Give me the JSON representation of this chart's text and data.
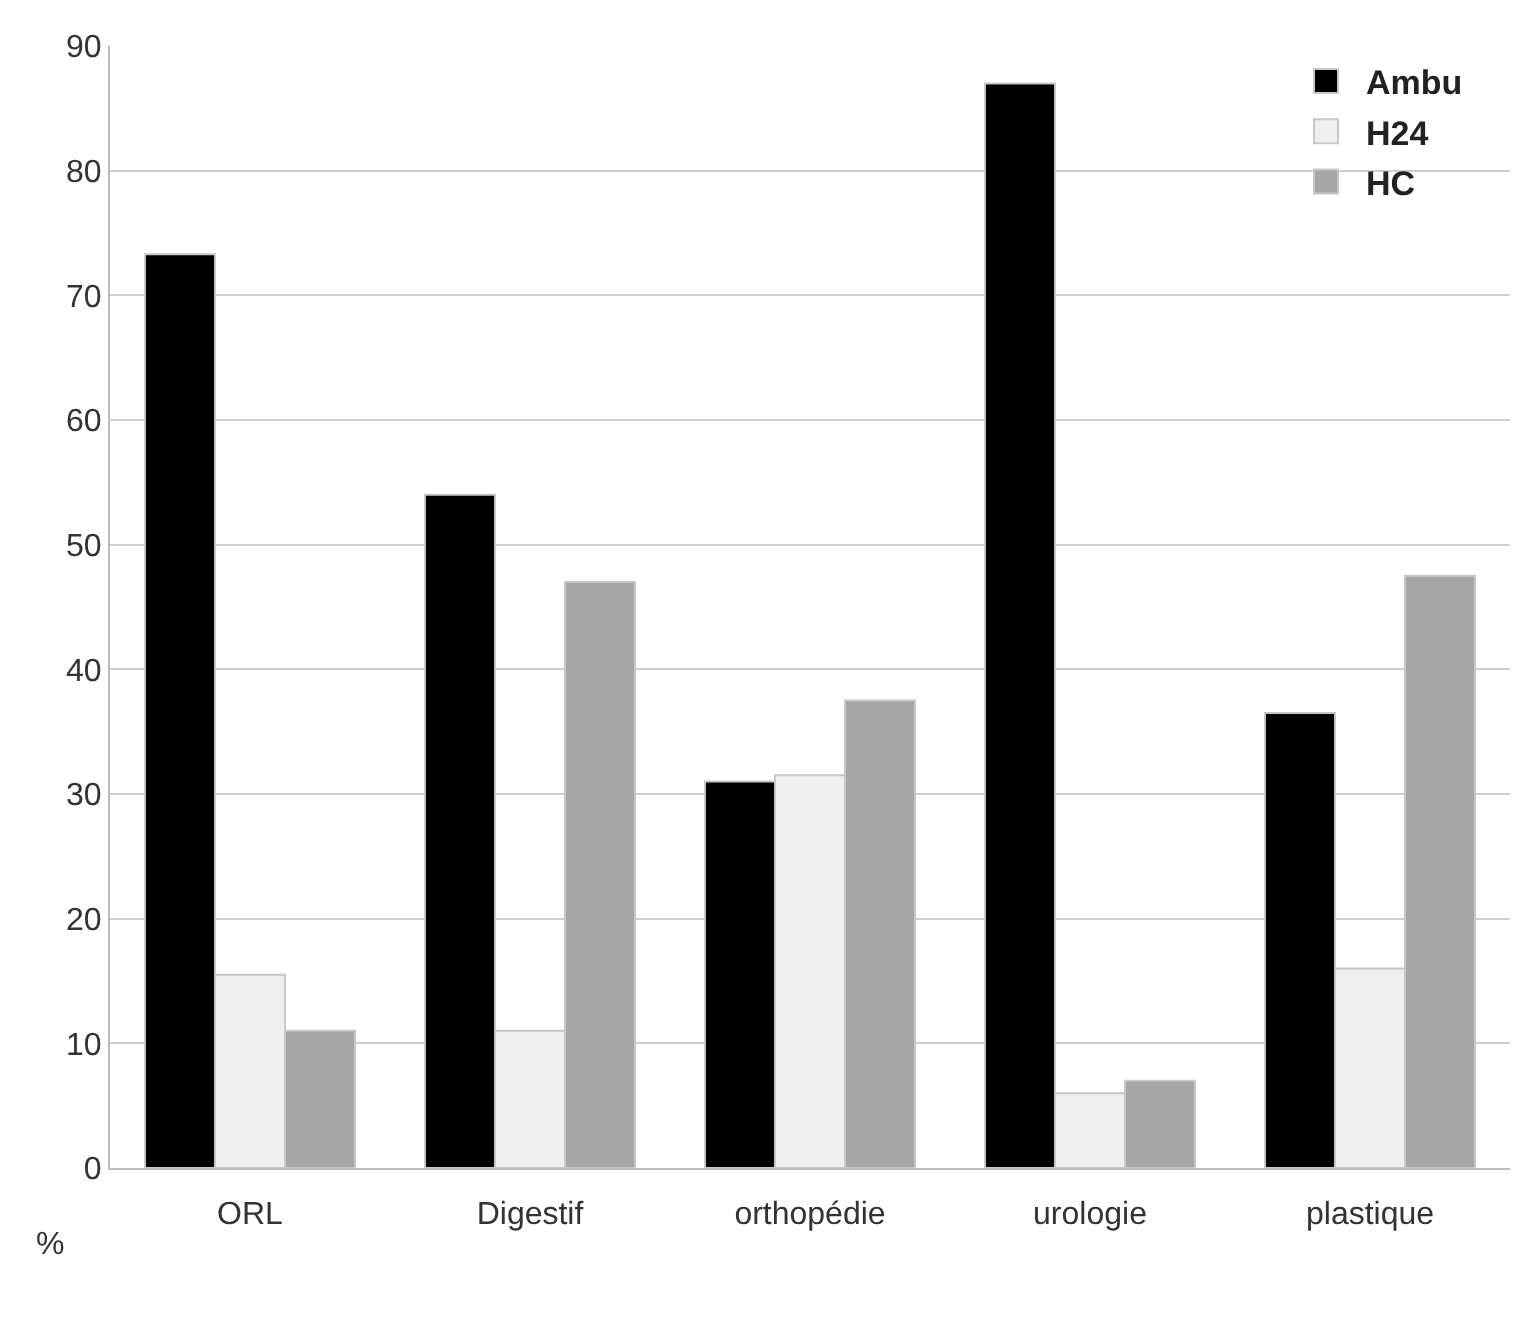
{
  "chart_data": {
    "type": "bar",
    "ylabel": "%",
    "categories": [
      "ORL",
      "Digestif",
      "orthopédie",
      "urologie",
      "plastique"
    ],
    "series": [
      {
        "name": "Ambu",
        "color": "#000000",
        "values": [
          73.3,
          54,
          31,
          87,
          36.5
        ]
      },
      {
        "name": "H24",
        "color": "#efefef",
        "values": [
          15.5,
          11,
          31.5,
          6,
          16
        ]
      },
      {
        "name": "HC",
        "color": "#a6a6a6",
        "values": [
          11,
          47,
          37.5,
          7,
          47.5
        ]
      }
    ],
    "ylim": [
      0,
      90
    ],
    "yticks": [
      0,
      10,
      20,
      30,
      40,
      50,
      60,
      70,
      80,
      90
    ],
    "grid": "y",
    "legend": "top right"
  }
}
